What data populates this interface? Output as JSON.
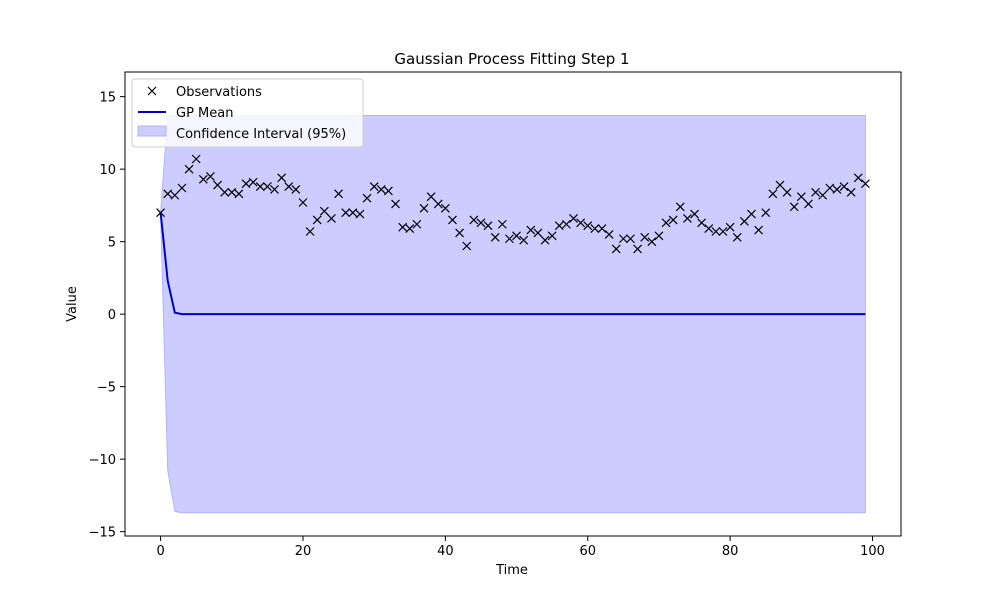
{
  "chart_data": {
    "type": "line",
    "title": "Gaussian Process Fitting Step 1",
    "xlabel": "Time",
    "ylabel": "Value",
    "xlim": [
      -5,
      104
    ],
    "ylim": [
      -15.3,
      16.7
    ],
    "xticks": [
      0,
      20,
      40,
      60,
      80,
      100
    ],
    "yticks": [
      -15,
      -10,
      -5,
      0,
      5,
      10,
      15
    ],
    "grid": false,
    "legend_position": "top-left",
    "colors": {
      "observations": "#000000",
      "gp_mean": "#0000cc",
      "confidence_fill": "#ccccff",
      "confidence_edge": "#b3b3ff"
    },
    "series": [
      {
        "name": "Observations",
        "kind": "scatter",
        "marker": "x",
        "x": [
          0,
          1,
          2,
          3,
          4,
          5,
          6,
          7,
          8,
          9,
          10,
          11,
          12,
          13,
          14,
          15,
          16,
          17,
          18,
          19,
          20,
          21,
          22,
          23,
          24,
          25,
          26,
          27,
          28,
          29,
          30,
          31,
          32,
          33,
          34,
          35,
          36,
          37,
          38,
          39,
          40,
          41,
          42,
          43,
          44,
          45,
          46,
          47,
          48,
          49,
          50,
          51,
          52,
          53,
          54,
          55,
          56,
          57,
          58,
          59,
          60,
          61,
          62,
          63,
          64,
          65,
          66,
          67,
          68,
          69,
          70,
          71,
          72,
          73,
          74,
          75,
          76,
          77,
          78,
          79,
          80,
          81,
          82,
          83,
          84,
          85,
          86,
          87,
          88,
          89,
          90,
          91,
          92,
          93,
          94,
          95,
          96,
          97,
          98,
          99
        ],
        "y": [
          7.0,
          8.3,
          8.2,
          8.7,
          10.0,
          10.7,
          9.3,
          9.5,
          8.9,
          8.4,
          8.4,
          8.3,
          9.0,
          9.1,
          8.8,
          8.8,
          8.6,
          9.4,
          8.8,
          8.6,
          7.7,
          5.7,
          6.5,
          7.1,
          6.6,
          8.3,
          7.0,
          7.0,
          6.9,
          8.0,
          8.8,
          8.6,
          8.5,
          7.6,
          6.0,
          5.9,
          6.2,
          7.3,
          8.1,
          7.6,
          7.3,
          6.5,
          5.6,
          4.7,
          6.5,
          6.3,
          6.1,
          5.3,
          6.2,
          5.2,
          5.4,
          5.1,
          5.8,
          5.6,
          5.1,
          5.4,
          6.1,
          6.2,
          6.6,
          6.3,
          6.1,
          5.9,
          5.9,
          5.5,
          4.5,
          5.2,
          5.2,
          4.5,
          5.3,
          5.0,
          5.4,
          6.3,
          6.5,
          7.4,
          6.6,
          6.9,
          6.3,
          5.9,
          5.7,
          5.7,
          6.0,
          5.3,
          6.4,
          6.9,
          5.8,
          7.0,
          8.3,
          8.9,
          8.4,
          7.4,
          8.1,
          7.6,
          8.4,
          8.2,
          8.7,
          8.6,
          8.8,
          8.4,
          9.4,
          9.0
        ]
      },
      {
        "name": "GP Mean",
        "kind": "line",
        "x": [
          0,
          1,
          2,
          3,
          99
        ],
        "y": [
          7.0,
          2.3,
          0.1,
          0.0,
          0.0
        ]
      },
      {
        "name": "Confidence Interval (95%)",
        "kind": "band",
        "x": [
          0,
          1,
          2,
          3,
          99
        ],
        "lower": [
          7.0,
          -10.8,
          -13.6,
          -13.7,
          -13.7
        ],
        "upper": [
          7.0,
          13.7,
          13.7,
          13.7,
          13.7
        ]
      }
    ]
  }
}
